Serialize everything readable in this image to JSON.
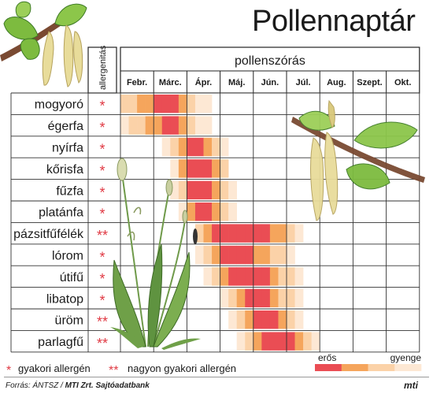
{
  "page": {
    "title": "Pollennaptár",
    "source_label": "Forrás: ÁNTSZ /",
    "source_org": "MTI Zrt. Sajtóadatbank",
    "logo": "mti"
  },
  "chart_data": {
    "type": "heatmap",
    "title": "Pollennaptár",
    "column_group_label": "pollenszórás",
    "allergen_column_label": "allergenitás",
    "months": [
      "Febr.",
      "Márc.",
      "Ápr.",
      "Máj.",
      "Jún.",
      "Júl.",
      "Aug.",
      "Szept.",
      "Okt."
    ],
    "scale": {
      "low_label": "gyenge",
      "high_label": "erős",
      "colors": [
        "#fde8d4",
        "#fbd2a8",
        "#f5a55c",
        "#ea4d54"
      ]
    },
    "legend": {
      "single_mark": "*",
      "single_label": "gyakori allergén",
      "double_mark": "**",
      "double_label": "nagyon gyakori allergén"
    },
    "rows": [
      {
        "plant": "mogyoró",
        "allergenicity": "*",
        "intensity": [
          2,
          2,
          3,
          3,
          4,
          4,
          4,
          3,
          2,
          1,
          1
        ]
      },
      {
        "plant": "égerfa",
        "allergenicity": "*",
        "intensity": [
          1,
          2,
          2,
          3,
          3,
          4,
          4,
          3,
          2,
          1,
          1
        ]
      },
      {
        "plant": "nyírfa",
        "allergenicity": "*",
        "intensity": [
          0,
          0,
          0,
          0,
          0,
          1,
          2,
          3,
          4,
          4,
          3,
          2,
          1
        ]
      },
      {
        "plant": "kőrisfa",
        "allergenicity": "*",
        "intensity": [
          0,
          0,
          0,
          0,
          0,
          0,
          1,
          3,
          4,
          4,
          4,
          3,
          2
        ]
      },
      {
        "plant": "fűzfa",
        "allergenicity": "*",
        "intensity": [
          0,
          0,
          0,
          0,
          0,
          0,
          1,
          2,
          4,
          4,
          4,
          3,
          2,
          1
        ]
      },
      {
        "plant": "platánfa",
        "allergenicity": "*",
        "intensity": [
          0,
          0,
          0,
          0,
          0,
          0,
          0,
          1,
          3,
          4,
          4,
          3,
          2,
          1
        ]
      },
      {
        "plant": "pázsitfűfélék",
        "allergenicity": "**",
        "intensity": [
          0,
          0,
          0,
          0,
          0,
          0,
          0,
          0,
          0,
          2,
          3,
          4,
          4,
          4,
          4,
          4,
          4,
          4,
          3,
          3,
          2,
          1
        ]
      },
      {
        "plant": "lórom",
        "allergenicity": "*",
        "intensity": [
          0,
          0,
          0,
          0,
          0,
          0,
          0,
          0,
          0,
          1,
          2,
          3,
          4,
          4,
          4,
          4,
          3,
          3,
          2,
          2,
          1
        ]
      },
      {
        "plant": "útifű",
        "allergenicity": "*",
        "intensity": [
          0,
          0,
          0,
          0,
          0,
          0,
          0,
          0,
          0,
          0,
          1,
          2,
          3,
          4,
          4,
          4,
          4,
          4,
          3,
          2,
          2,
          1
        ]
      },
      {
        "plant": "libatop",
        "allergenicity": "*",
        "intensity": [
          0,
          0,
          0,
          0,
          0,
          0,
          0,
          0,
          0,
          0,
          0,
          0,
          1,
          2,
          3,
          4,
          4,
          4,
          3,
          2,
          2,
          1
        ]
      },
      {
        "plant": "üröm",
        "allergenicity": "**",
        "intensity": [
          0,
          0,
          0,
          0,
          0,
          0,
          0,
          0,
          0,
          0,
          0,
          0,
          0,
          1,
          2,
          3,
          4,
          4,
          4,
          3,
          2,
          1
        ]
      },
      {
        "plant": "parlagfű",
        "allergenicity": "**",
        "intensity": [
          0,
          0,
          0,
          0,
          0,
          0,
          0,
          0,
          0,
          0,
          0,
          0,
          0,
          0,
          1,
          2,
          3,
          4,
          4,
          4,
          4,
          3,
          2,
          1
        ]
      }
    ]
  }
}
